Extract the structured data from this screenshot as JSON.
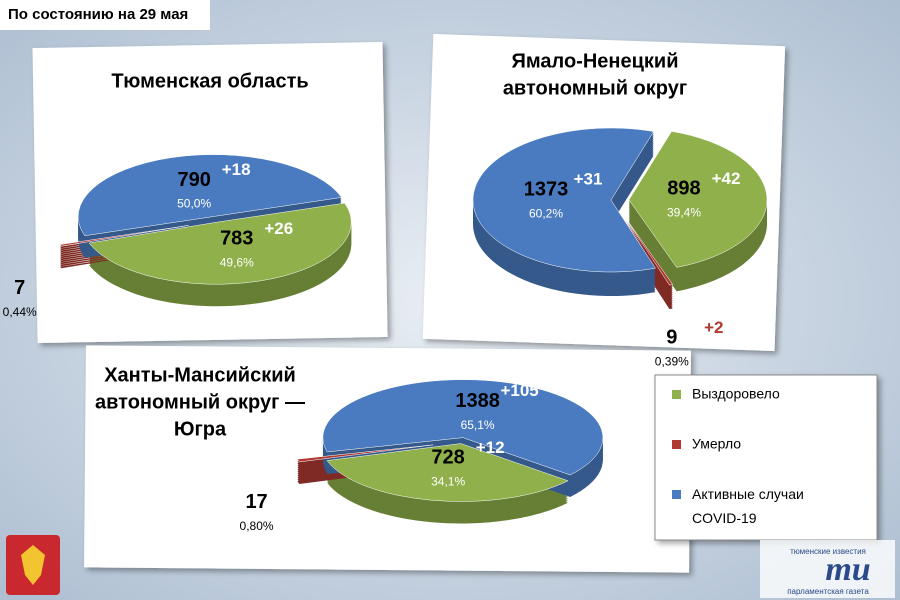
{
  "header": "По состоянию на 29 мая",
  "legend": {
    "labels": [
      "Выздоровело",
      "Умерло",
      "Активные случаи COVID-19"
    ],
    "colors": [
      "#8fb04a",
      "#b03a32",
      "#4a7bc0"
    ]
  },
  "chart_data": [
    {
      "type": "pie",
      "title": [
        "Тюменская область"
      ],
      "values": [
        783,
        7,
        790
      ],
      "percentages": [
        49.6,
        0.44,
        50.0
      ],
      "percentage_labels": [
        "49,6%",
        "0,44%",
        "50,0%"
      ],
      "increases": [
        26,
        null,
        18
      ],
      "increase_labels": [
        "+26",
        null,
        "+18"
      ]
    },
    {
      "type": "pie",
      "title": [
        "Ямало-Ненецкий",
        "автономный округ"
      ],
      "values": [
        898,
        9,
        1373
      ],
      "percentages": [
        39.4,
        0.39,
        60.2
      ],
      "percentage_labels": [
        "39,4%",
        "0,39%",
        "60,2%"
      ],
      "increases": [
        42,
        2,
        31
      ],
      "increase_labels": [
        "+42",
        "+2",
        "+31"
      ]
    },
    {
      "type": "pie",
      "title": [
        "Ханты-Мансийский",
        "автономный округ —",
        "Югра"
      ],
      "values": [
        728,
        17,
        1388
      ],
      "percentages": [
        34.1,
        0.8,
        65.1
      ],
      "percentage_labels": [
        "34,1%",
        "0,80%",
        "65,1%"
      ],
      "increases": [
        12,
        null,
        105
      ],
      "increase_labels": [
        "+12",
        null,
        "+105"
      ]
    }
  ],
  "logo": {
    "top": "тюменские известия",
    "mark": "ти",
    "bottom": "парламентская газета"
  }
}
